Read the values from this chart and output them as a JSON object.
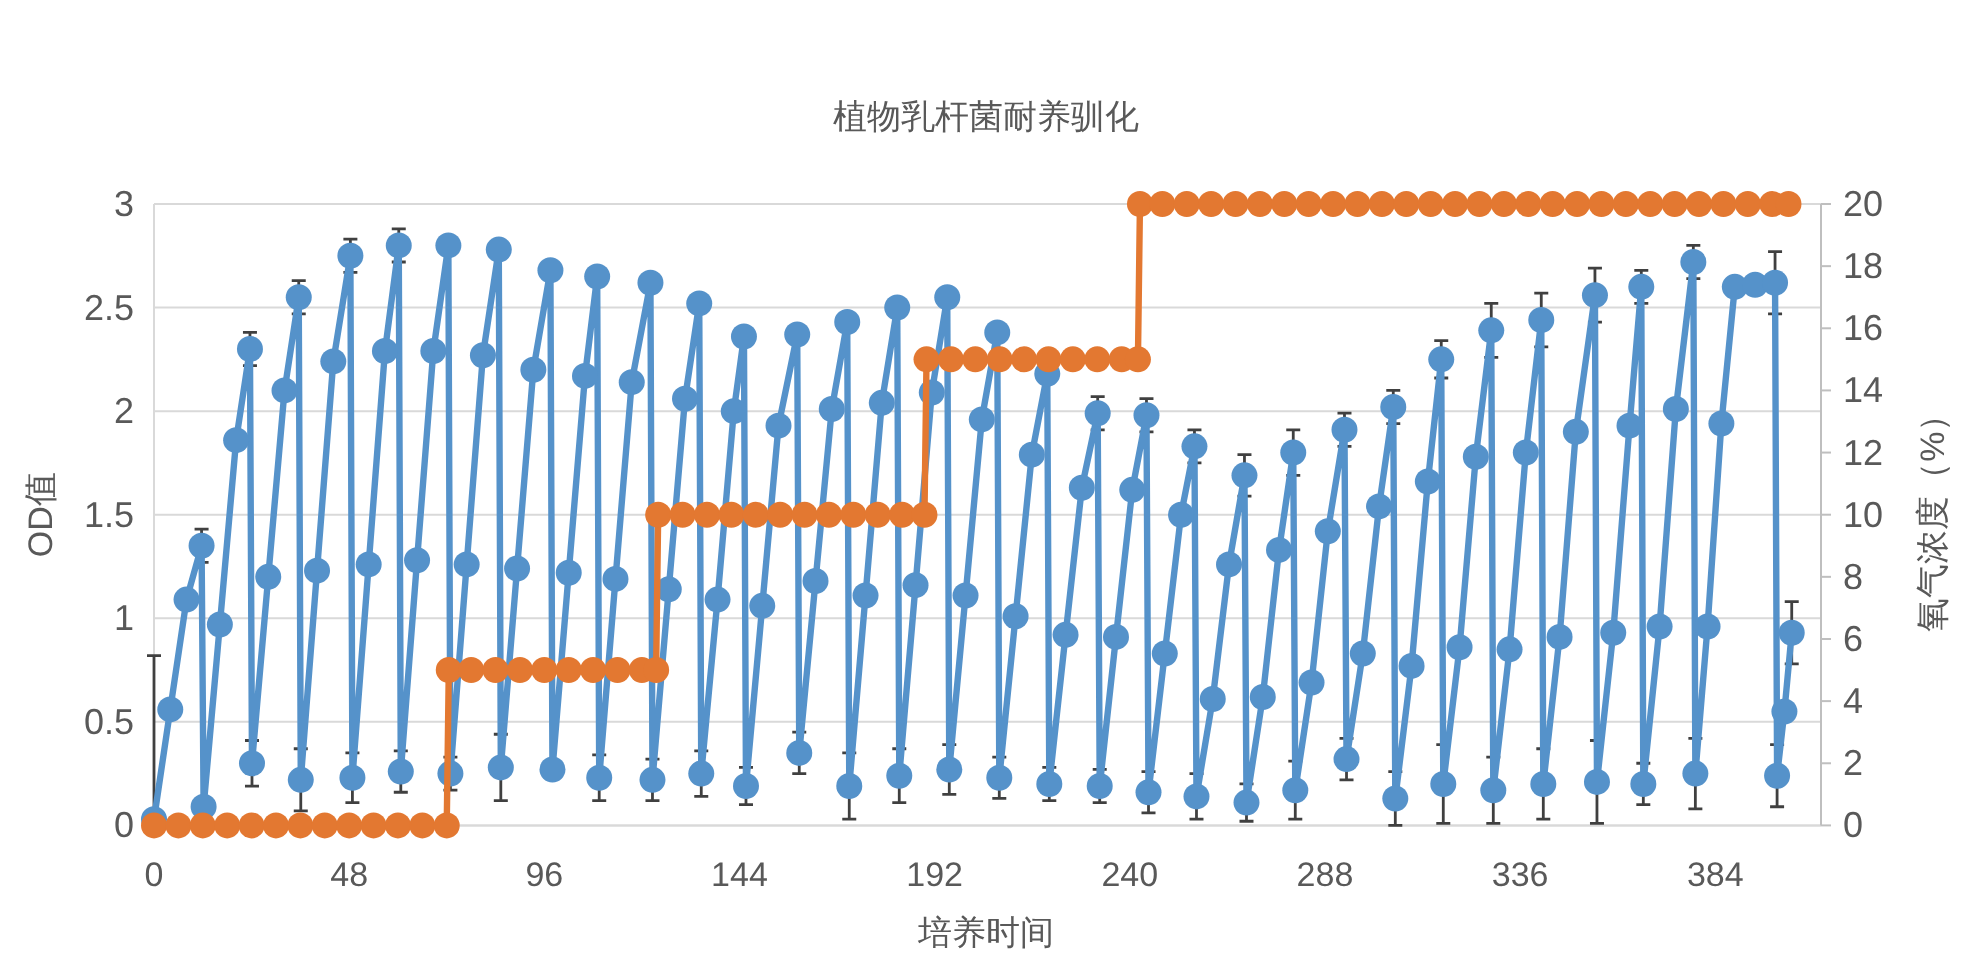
{
  "chart_data": {
    "type": "line",
    "title": "植物乳杆菌耐养驯化",
    "xlabel": "培养时间",
    "ylabel": "OD值",
    "y2label": "氧气浓度（%）",
    "xlim": [
      0,
      410
    ],
    "xticks": [
      0,
      48,
      96,
      144,
      192,
      240,
      288,
      336,
      384
    ],
    "ylim": [
      0,
      3
    ],
    "yticks": [
      0,
      0.5,
      1,
      1.5,
      2,
      2.5,
      3
    ],
    "y2lim": [
      0,
      20
    ],
    "y2ticks": [
      0,
      2,
      4,
      6,
      8,
      10,
      12,
      14,
      16,
      18,
      20
    ],
    "grid": "y",
    "marker": "circle",
    "series": [
      {
        "color": "#5592ca",
        "x": [
          0,
          4,
          8,
          11.7,
          12.2,
          16.2,
          20.2,
          23.6,
          24.1,
          28.1,
          32.1,
          35.6,
          36.1,
          40.1,
          44.1,
          48.3,
          48.8,
          52.8,
          56.8,
          60.2,
          60.7,
          64.7,
          68.7,
          72.4,
          72.9,
          76.9,
          80.9,
          84.8,
          85.3,
          89.3,
          93.3,
          97.5,
          98.0,
          102.0,
          106.0,
          109.0,
          109.5,
          113.5,
          117.5,
          122.1,
          122.6,
          126.6,
          130.6,
          134.1,
          134.6,
          138.6,
          142.6,
          145.1,
          145.6,
          149.6,
          153.6,
          158.2,
          158.7,
          162.7,
          166.7,
          170.5,
          171.0,
          175.0,
          179.0,
          182.8,
          183.3,
          187.3,
          191.3,
          195.1,
          195.6,
          199.6,
          203.6,
          207.4,
          207.9,
          211.9,
          215.9,
          219.7,
          220.2,
          224.2,
          228.2,
          232.1,
          232.6,
          236.6,
          240.6,
          244.1,
          244.6,
          248.6,
          252.6,
          255.9,
          256.4,
          260.4,
          264.4,
          268.2,
          268.7,
          272.7,
          276.7,
          280.2,
          280.7,
          284.7,
          288.7,
          292.8,
          293.3,
          297.3,
          301.3,
          304.8,
          305.3,
          309.3,
          313.3,
          316.6,
          317.1,
          321.1,
          325.1,
          328.9,
          329.4,
          333.4,
          337.4,
          341.2,
          341.7,
          345.7,
          349.7,
          354.4,
          354.9,
          358.9,
          362.9,
          365.8,
          366.3,
          370.3,
          374.3,
          378.6,
          379.1,
          382.1,
          385.5,
          388.8,
          393.8,
          398.7,
          399.2,
          401.0,
          402.8
        ],
        "values": [
          0.03,
          0.56,
          1.09,
          1.35,
          0.09,
          0.97,
          1.86,
          2.3,
          0.3,
          1.2,
          2.1,
          2.55,
          0.22,
          1.23,
          2.24,
          2.75,
          0.23,
          1.26,
          2.29,
          2.8,
          0.26,
          1.28,
          2.29,
          2.8,
          0.25,
          1.26,
          2.27,
          2.78,
          0.28,
          1.24,
          2.2,
          2.68,
          0.27,
          1.22,
          2.17,
          2.65,
          0.23,
          1.19,
          2.14,
          2.62,
          0.22,
          1.14,
          2.06,
          2.52,
          0.25,
          1.09,
          2.0,
          2.36,
          0.19,
          1.06,
          1.93,
          2.37,
          0.35,
          1.18,
          2.01,
          2.43,
          0.19,
          1.11,
          2.04,
          2.5,
          0.24,
          1.16,
          2.09,
          2.55,
          0.27,
          1.11,
          1.96,
          2.38,
          0.23,
          1.01,
          1.79,
          2.18,
          0.2,
          0.92,
          1.63,
          1.99,
          0.19,
          0.91,
          1.62,
          1.98,
          0.16,
          0.83,
          1.5,
          1.83,
          0.14,
          0.61,
          1.26,
          1.69,
          0.11,
          0.62,
          1.33,
          1.8,
          0.17,
          0.69,
          1.42,
          1.91,
          0.32,
          0.83,
          1.54,
          2.02,
          0.13,
          0.77,
          1.66,
          2.25,
          0.2,
          0.86,
          1.78,
          2.39,
          0.17,
          0.85,
          1.8,
          2.44,
          0.2,
          0.91,
          1.9,
          2.56,
          0.21,
          0.93,
          1.93,
          2.6,
          0.2,
          0.96,
          2.01,
          2.72,
          0.25,
          0.96,
          1.94,
          2.6,
          2.61,
          2.62,
          0.24,
          0.55,
          0.93
        ],
        "errors": [
          [
            0.03,
            0.82
          ],
          null,
          null,
          0.08,
          null,
          null,
          null,
          0.08,
          0.11,
          null,
          null,
          0.08,
          0.15,
          null,
          null,
          0.08,
          0.12,
          null,
          null,
          0.08,
          0.1,
          null,
          null,
          null,
          0.08,
          null,
          null,
          null,
          0.16,
          null,
          null,
          null,
          null,
          null,
          null,
          null,
          0.11,
          null,
          null,
          null,
          0.1,
          null,
          null,
          null,
          0.11,
          null,
          null,
          null,
          0.09,
          null,
          null,
          null,
          0.1,
          null,
          null,
          null,
          0.16,
          null,
          null,
          null,
          0.13,
          null,
          null,
          null,
          0.12,
          null,
          null,
          null,
          0.1,
          null,
          null,
          null,
          0.08,
          null,
          null,
          0.08,
          0.08,
          null,
          null,
          0.08,
          0.1,
          null,
          null,
          0.08,
          0.11,
          null,
          null,
          0.1,
          0.09,
          null,
          null,
          0.11,
          0.14,
          null,
          null,
          0.08,
          0.1,
          null,
          null,
          0.08,
          0.13,
          null,
          null,
          0.09,
          0.19,
          null,
          null,
          0.13,
          0.16,
          null,
          null,
          0.13,
          0.17,
          null,
          null,
          0.13,
          0.2,
          null,
          null,
          0.08,
          0.1,
          null,
          null,
          0.08,
          0.17,
          null,
          null,
          null,
          null,
          0.15,
          0.15,
          null,
          0.15
        ]
      },
      {
        "color": "#e37831",
        "axis": "y2",
        "x": [
          0,
          6,
          12,
          18,
          24,
          30,
          36,
          42,
          48,
          54,
          60,
          66,
          72,
          72.5,
          78,
          84,
          90,
          96,
          102,
          108,
          114,
          120,
          123.5,
          124,
          130,
          136,
          142,
          148,
          154,
          160,
          166,
          172,
          178,
          184,
          189.5,
          190,
          196,
          202,
          208,
          214,
          220,
          226,
          232,
          238,
          242,
          242.5,
          248,
          254,
          260,
          266,
          272,
          278,
          284,
          290,
          296,
          302,
          308,
          314,
          320,
          326,
          332,
          338,
          344,
          350,
          356,
          362,
          368,
          374,
          380,
          386,
          392,
          398,
          402
        ],
        "values": [
          0,
          0,
          0,
          0,
          0,
          0,
          0,
          0,
          0,
          0,
          0,
          0,
          0,
          5,
          5,
          5,
          5,
          5,
          5,
          5,
          5,
          5,
          5,
          10,
          10,
          10,
          10,
          10,
          10,
          10,
          10,
          10,
          10,
          10,
          10,
          15,
          15,
          15,
          15,
          15,
          15,
          15,
          15,
          15,
          15,
          20,
          20,
          20,
          20,
          20,
          20,
          20,
          20,
          20,
          20,
          20,
          20,
          20,
          20,
          20,
          20,
          20,
          20,
          20,
          20,
          20,
          20,
          20,
          20,
          20,
          20,
          20,
          20
        ]
      }
    ]
  }
}
